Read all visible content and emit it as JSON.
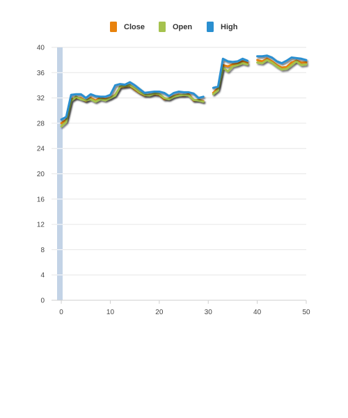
{
  "chart_data": {
    "type": "line",
    "title": "",
    "xlabel": "",
    "ylabel": "",
    "xlim": [
      -2,
      50
    ],
    "ylim": [
      0,
      40
    ],
    "x_ticks": [
      0,
      10,
      20,
      30,
      40,
      50
    ],
    "y_ticks": [
      0,
      4,
      8,
      12,
      16,
      20,
      24,
      28,
      32,
      36,
      40
    ],
    "grid": true,
    "legend_position": "top-center",
    "scrollbar_color": "#c3d3e6",
    "x": [
      0,
      1,
      2,
      3,
      4,
      5,
      6,
      7,
      8,
      9,
      10,
      11,
      12,
      13,
      14,
      15,
      16,
      17,
      18,
      19,
      20,
      21,
      22,
      23,
      24,
      25,
      26,
      27,
      28,
      29,
      30,
      31,
      32,
      33,
      34,
      35,
      36,
      37,
      38,
      39,
      40,
      41,
      42,
      43,
      44,
      45,
      46,
      47,
      48,
      49,
      50
    ],
    "series": [
      {
        "name": "Close",
        "color": "#e8820c",
        "values": [
          28.0,
          28.5,
          31.8,
          32.0,
          32.0,
          31.5,
          32.0,
          31.6,
          32.0,
          31.8,
          32.0,
          32.5,
          33.7,
          33.8,
          33.9,
          33.3,
          32.8,
          32.4,
          32.5,
          32.6,
          32.5,
          31.8,
          31.9,
          32.3,
          32.5,
          32.4,
          32.6,
          31.6,
          31.7,
          31.5,
          null,
          32.8,
          33.5,
          37.2,
          37.0,
          37.3,
          37.4,
          37.8,
          37.5,
          null,
          38.0,
          37.8,
          38.2,
          37.8,
          37.2,
          36.8,
          36.9,
          37.6,
          37.9,
          37.6,
          37.6
        ]
      },
      {
        "name": "Open",
        "color": "#a5c24e",
        "values": [
          27.5,
          28.2,
          31.5,
          32.2,
          31.8,
          31.6,
          31.8,
          31.4,
          31.8,
          31.6,
          32.0,
          32.4,
          33.8,
          33.9,
          34.0,
          33.5,
          32.9,
          32.5,
          32.4,
          32.7,
          32.6,
          32.0,
          31.8,
          32.2,
          32.4,
          32.5,
          32.4,
          31.7,
          31.6,
          31.4,
          null,
          32.6,
          33.2,
          36.8,
          36.2,
          37.0,
          37.2,
          37.5,
          37.3,
          null,
          37.6,
          37.5,
          38.0,
          37.6,
          37.0,
          36.5,
          36.6,
          37.2,
          37.8,
          37.2,
          37.3
        ]
      },
      {
        "name": "High",
        "color": "#2a8fd0",
        "values": [
          28.6,
          29.0,
          32.5,
          32.6,
          32.6,
          32.0,
          32.6,
          32.3,
          32.2,
          32.2,
          32.5,
          34.0,
          34.2,
          34.1,
          34.5,
          34.0,
          33.4,
          32.8,
          32.9,
          33.0,
          33.0,
          32.8,
          32.3,
          32.8,
          33.0,
          32.9,
          32.9,
          32.7,
          32.0,
          32.2,
          null,
          33.6,
          33.8,
          38.2,
          37.8,
          37.7,
          37.8,
          38.2,
          37.9,
          null,
          38.6,
          38.6,
          38.7,
          38.4,
          37.8,
          37.5,
          37.9,
          38.4,
          38.3,
          38.2,
          38.0
        ]
      }
    ]
  }
}
